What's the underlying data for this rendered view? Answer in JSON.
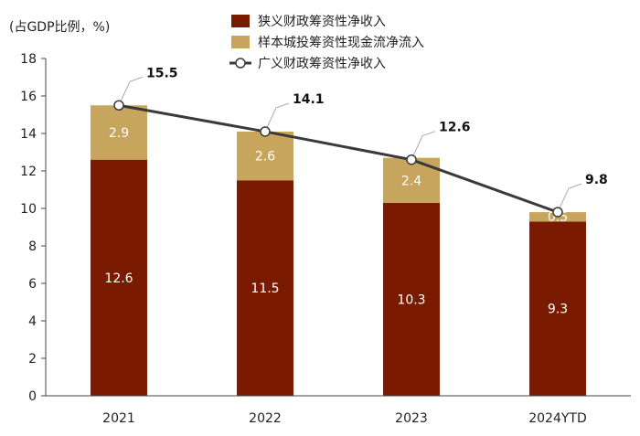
{
  "chart_data": {
    "type": "bar",
    "stacked": true,
    "unit_label": "(占GDP比例，%)",
    "categories": [
      "2021",
      "2022",
      "2023",
      "2024YTD"
    ],
    "series": [
      {
        "name": "狭义财政筹资性净收入",
        "kind": "bar",
        "color": "#7a1a00",
        "values": [
          12.6,
          11.5,
          10.3,
          9.3
        ],
        "labels": [
          "12.6",
          "11.5",
          "10.3",
          "9.3"
        ]
      },
      {
        "name": "样本城投筹资性现金流净流入",
        "kind": "bar",
        "color": "#c8a55c",
        "values": [
          2.9,
          2.6,
          2.4,
          0.5
        ],
        "labels": [
          "2.9",
          "2.6",
          "2.4",
          "0.5"
        ]
      },
      {
        "name": "广义财政筹资性净收入",
        "kind": "line",
        "color": "#3a3a3a",
        "values": [
          15.5,
          14.1,
          12.6,
          9.8
        ],
        "labels": [
          "15.5",
          "14.1",
          "12.6",
          "9.8"
        ]
      }
    ],
    "ylim": [
      0,
      18
    ],
    "yticks": [
      "0",
      "2",
      "4",
      "6",
      "8",
      "10",
      "12",
      "14",
      "16",
      "18"
    ],
    "legend_position": "top-center"
  }
}
